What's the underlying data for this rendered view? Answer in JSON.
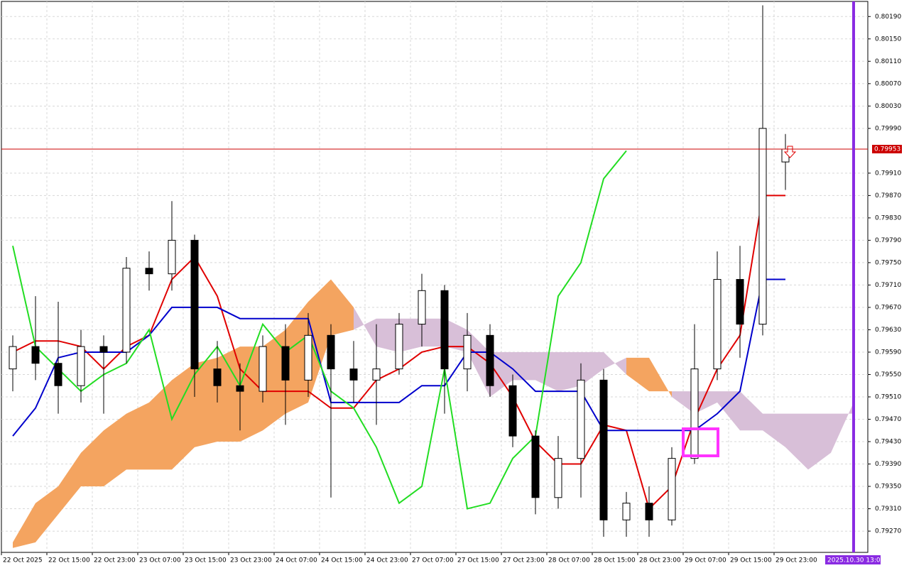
{
  "chart_data": {
    "type": "candlestick",
    "categories": [
      "22 Oct 2025",
      null,
      "22 Oct 15:00",
      null,
      "22 Oct 23:00",
      null,
      "23 Oct 07:00",
      null,
      "23 Oct 15:00",
      null,
      "23 Oct 23:00",
      null,
      "24 Oct 07:00",
      null,
      "24 Oct 15:00",
      null,
      "24 Oct 23:00",
      null,
      "27 Oct 07:00",
      null,
      "27 Oct 15:00",
      null,
      "27 Oct 23:00",
      null,
      "28 Oct 07:00",
      null,
      "28 Oct 15:00",
      null,
      "28 Oct 23:00",
      null,
      "29 Oct 07:00",
      null,
      "29 Oct 15:00",
      null,
      "29 Oct 23:00",
      null,
      null,
      null
    ],
    "open": [
      0.7956,
      0.796,
      0.7957,
      0.7953,
      0.796,
      0.7959,
      0.7974,
      0.7973,
      0.7979,
      0.7956,
      0.7953,
      0.7952,
      0.796,
      0.7954,
      0.7962,
      0.7956,
      0.7954,
      0.7956,
      0.7964,
      0.797,
      0.7956,
      0.7962,
      0.7953,
      0.7944,
      0.7933,
      0.794,
      0.7954,
      0.7929,
      0.7932,
      0.7929,
      0.794,
      0.7956,
      0.7972,
      0.7964,
      0.7993,
      null,
      null,
      null
    ],
    "high": [
      0.7962,
      0.7969,
      0.7968,
      0.7963,
      0.7962,
      0.7976,
      0.7977,
      0.7986,
      0.798,
      0.7961,
      0.7957,
      0.7962,
      0.7964,
      0.7966,
      0.7964,
      0.7961,
      0.7964,
      0.7966,
      0.7973,
      0.7971,
      0.7966,
      0.7964,
      0.7955,
      0.7945,
      0.7944,
      0.7957,
      0.7956,
      0.7934,
      0.7935,
      0.7942,
      0.7964,
      0.7977,
      0.7978,
      0.8021,
      0.7998,
      null,
      null,
      null
    ],
    "low": [
      0.7952,
      0.7954,
      0.7948,
      0.795,
      0.7948,
      0.7957,
      0.797,
      0.797,
      0.7951,
      0.795,
      0.7945,
      0.795,
      0.7946,
      0.7951,
      0.7933,
      0.795,
      0.7946,
      0.7955,
      0.796,
      0.7948,
      0.7952,
      0.7951,
      0.7942,
      0.793,
      0.7931,
      0.7933,
      0.7926,
      0.7926,
      0.7926,
      0.7928,
      0.7939,
      0.7954,
      0.7958,
      0.7962,
      0.7988,
      null,
      null,
      null
    ],
    "close": [
      0.796,
      0.7957,
      0.7953,
      0.796,
      0.7959,
      0.7974,
      0.7973,
      0.7979,
      0.7956,
      0.7953,
      0.7952,
      0.796,
      0.7954,
      0.7962,
      0.7956,
      0.7954,
      0.7956,
      0.7964,
      0.797,
      0.7956,
      0.7962,
      0.7953,
      0.7944,
      0.7933,
      0.794,
      0.7954,
      0.7929,
      0.7932,
      0.7929,
      0.794,
      0.7956,
      0.7972,
      0.7964,
      0.7999,
      0.79953,
      null,
      null,
      null
    ],
    "bull_color": "#ffffff",
    "bear_color": "#000000",
    "lines": [
      {
        "color": "#e00000",
        "values": [
          0.7959,
          0.7961,
          0.7961,
          0.796,
          0.7956,
          0.796,
          0.7962,
          0.7972,
          0.7976,
          0.7969,
          0.7956,
          0.7952,
          0.7952,
          0.7952,
          0.7949,
          0.7949,
          0.7954,
          0.7956,
          0.7959,
          0.796,
          0.796,
          0.7957,
          0.7951,
          0.7943,
          0.7939,
          0.7939,
          0.7946,
          0.7945,
          0.7931,
          0.7935,
          0.7947,
          0.7956,
          0.7962,
          0.7987,
          0.7987,
          null,
          null,
          null
        ]
      },
      {
        "color": "#0000cc",
        "values": [
          0.7944,
          0.7949,
          0.7958,
          0.7959,
          0.7959,
          0.7959,
          0.7962,
          0.7967,
          0.7967,
          0.7967,
          0.7965,
          0.7965,
          0.7965,
          0.7965,
          0.795,
          0.795,
          0.795,
          0.795,
          0.7953,
          0.7953,
          0.7959,
          0.7959,
          0.7956,
          0.7952,
          0.7952,
          0.7952,
          0.7945,
          0.7945,
          0.7945,
          0.7945,
          0.7945,
          0.7948,
          0.7952,
          0.7972,
          0.7972,
          null,
          null,
          null
        ]
      },
      {
        "color": "#22dd22",
        "values": [
          0.7978,
          0.796,
          0.7956,
          0.7952,
          0.7955,
          0.7957,
          0.7963,
          0.7947,
          0.7955,
          0.796,
          0.7953,
          0.7964,
          0.7959,
          0.7962,
          0.7952,
          0.7949,
          0.7942,
          0.7932,
          0.7935,
          0.7956,
          0.7931,
          0.7932,
          0.794,
          0.7944,
          0.7969,
          0.7975,
          0.799,
          0.7995,
          null,
          null,
          null,
          null,
          null,
          null,
          null,
          null,
          null,
          null
        ]
      }
    ],
    "cloud": {
      "up_color": "#f4a460",
      "down_color": "#d8bfd8",
      "span_a": [
        0.7925,
        0.7932,
        0.7935,
        0.7941,
        0.7945,
        0.7948,
        0.795,
        0.7954,
        0.7957,
        0.7958,
        0.796,
        0.796,
        0.7963,
        0.7968,
        0.7972,
        0.7967,
        0.796,
        0.7959,
        0.796,
        0.796,
        0.7959,
        0.7951,
        0.7954,
        0.7954,
        0.7952,
        0.7953,
        0.7956,
        0.7958,
        0.7958,
        0.7951,
        0.7948,
        0.795,
        0.7945,
        0.7945,
        0.7942,
        0.7938,
        0.7941,
        0.795
      ],
      "span_b": [
        0.7924,
        0.7925,
        0.793,
        0.7935,
        0.7935,
        0.7938,
        0.7938,
        0.7938,
        0.7942,
        0.7943,
        0.7943,
        0.7945,
        0.7948,
        0.795,
        0.7962,
        0.7963,
        0.7965,
        0.7965,
        0.7965,
        0.7965,
        0.7963,
        0.7959,
        0.7959,
        0.7959,
        0.7959,
        0.7959,
        0.7959,
        0.7955,
        0.7952,
        0.7952,
        0.7952,
        0.7952,
        0.7952,
        0.7948,
        0.7948,
        0.7948,
        0.7948,
        0.7948
      ]
    },
    "ylim": [
      0.79232,
      0.80217
    ],
    "yticks": [
      {
        "value": 0.8019,
        "label": "0.80190"
      },
      {
        "value": 0.8015,
        "label": "0.80150"
      },
      {
        "value": 0.8011,
        "label": "0.80110"
      },
      {
        "value": 0.8007,
        "label": "0.80070"
      },
      {
        "value": 0.8003,
        "label": "0.80030"
      },
      {
        "value": 0.7999,
        "label": "0.79990"
      },
      {
        "value": 0.7991,
        "label": "0.79910"
      },
      {
        "value": 0.7987,
        "label": "0.79870"
      },
      {
        "value": 0.7983,
        "label": "0.79830"
      },
      {
        "value": 0.7979,
        "label": "0.79790"
      },
      {
        "value": 0.7975,
        "label": "0.79750"
      },
      {
        "value": 0.7971,
        "label": "0.79710"
      },
      {
        "value": 0.7967,
        "label": "0.79670"
      },
      {
        "value": 0.7963,
        "label": "0.79630"
      },
      {
        "value": 0.7959,
        "label": "0.79590"
      },
      {
        "value": 0.7955,
        "label": "0.79550"
      },
      {
        "value": 0.7951,
        "label": "0.79510"
      },
      {
        "value": 0.7947,
        "label": "0.79470"
      },
      {
        "value": 0.7943,
        "label": "0.79430"
      },
      {
        "value": 0.7939,
        "label": "0.79390"
      },
      {
        "value": 0.7935,
        "label": "0.79350"
      },
      {
        "value": 0.7931,
        "label": "0.79310"
      },
      {
        "value": 0.7927,
        "label": "0.79270"
      }
    ],
    "grid": true,
    "current_price": 0.79953,
    "current_price_color": "#cc0000",
    "marker_label": "2025.10.30 13:00",
    "marker_color": "#8a2be2"
  }
}
